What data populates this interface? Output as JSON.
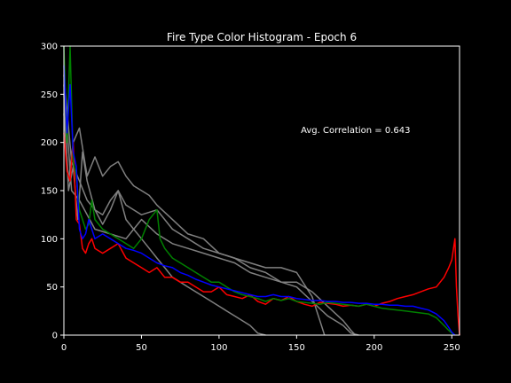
{
  "chart_data": {
    "type": "line",
    "title": "Fire Type Color Histogram - Epoch 6",
    "xlabel": "",
    "ylabel": "",
    "xlim": [
      0,
      255
    ],
    "ylim": [
      0,
      300
    ],
    "x_ticks": [
      0,
      50,
      100,
      150,
      200,
      250
    ],
    "y_ticks": [
      0,
      50,
      100,
      150,
      200,
      250,
      300
    ],
    "grid": false,
    "background": "#000000",
    "annotation": {
      "text": "Avg. Correlation = 0.643",
      "x": 188,
      "y": 210
    },
    "series": [
      {
        "role": "reference",
        "color": "#808080",
        "points": [
          [
            0,
            250
          ],
          [
            3,
            150
          ],
          [
            6,
            175
          ],
          [
            9,
            120
          ],
          [
            12,
            190
          ],
          [
            15,
            160
          ],
          [
            20,
            130
          ],
          [
            25,
            115
          ],
          [
            30,
            130
          ],
          [
            35,
            150
          ],
          [
            40,
            120
          ],
          [
            45,
            110
          ],
          [
            50,
            100
          ],
          [
            55,
            90
          ],
          [
            60,
            80
          ],
          [
            65,
            70
          ],
          [
            70,
            60
          ],
          [
            75,
            55
          ],
          [
            80,
            50
          ],
          [
            90,
            40
          ],
          [
            100,
            30
          ],
          [
            110,
            20
          ],
          [
            120,
            10
          ],
          [
            125,
            2
          ],
          [
            130,
            0
          ]
        ]
      },
      {
        "role": "reference",
        "color": "#808080",
        "points": [
          [
            0,
            230
          ],
          [
            3,
            160
          ],
          [
            6,
            200
          ],
          [
            10,
            215
          ],
          [
            15,
            165
          ],
          [
            20,
            185
          ],
          [
            25,
            165
          ],
          [
            30,
            175
          ],
          [
            35,
            180
          ],
          [
            40,
            165
          ],
          [
            45,
            155
          ],
          [
            50,
            150
          ],
          [
            55,
            145
          ],
          [
            60,
            135
          ],
          [
            70,
            120
          ],
          [
            80,
            105
          ],
          [
            90,
            100
          ],
          [
            100,
            85
          ],
          [
            110,
            80
          ],
          [
            120,
            70
          ],
          [
            130,
            65
          ],
          [
            140,
            55
          ],
          [
            150,
            50
          ],
          [
            160,
            35
          ],
          [
            170,
            20
          ],
          [
            180,
            10
          ],
          [
            185,
            2
          ],
          [
            190,
            0
          ]
        ]
      },
      {
        "role": "reference",
        "color": "#808080",
        "points": [
          [
            0,
            270
          ],
          [
            5,
            180
          ],
          [
            10,
            160
          ],
          [
            15,
            140
          ],
          [
            20,
            130
          ],
          [
            25,
            125
          ],
          [
            30,
            140
          ],
          [
            35,
            150
          ],
          [
            40,
            135
          ],
          [
            45,
            130
          ],
          [
            50,
            125
          ],
          [
            60,
            130
          ],
          [
            70,
            110
          ],
          [
            80,
            100
          ],
          [
            90,
            90
          ],
          [
            100,
            85
          ],
          [
            110,
            80
          ],
          [
            120,
            75
          ],
          [
            130,
            70
          ],
          [
            140,
            70
          ],
          [
            150,
            65
          ],
          [
            160,
            40
          ],
          [
            165,
            15
          ],
          [
            168,
            0
          ]
        ]
      },
      {
        "role": "reference",
        "color": "#808080",
        "points": [
          [
            0,
            260
          ],
          [
            5,
            150
          ],
          [
            10,
            140
          ],
          [
            15,
            125
          ],
          [
            20,
            110
          ],
          [
            30,
            105
          ],
          [
            40,
            100
          ],
          [
            50,
            120
          ],
          [
            60,
            105
          ],
          [
            70,
            95
          ],
          [
            80,
            90
          ],
          [
            90,
            85
          ],
          [
            100,
            80
          ],
          [
            110,
            75
          ],
          [
            120,
            65
          ],
          [
            130,
            60
          ],
          [
            140,
            55
          ],
          [
            150,
            55
          ],
          [
            160,
            45
          ],
          [
            170,
            30
          ],
          [
            180,
            15
          ],
          [
            185,
            5
          ],
          [
            188,
            0
          ]
        ]
      },
      {
        "role": "red",
        "color": "#ff0000",
        "points": [
          [
            0,
            210
          ],
          [
            2,
            170
          ],
          [
            4,
            160
          ],
          [
            6,
            200
          ],
          [
            8,
            120
          ],
          [
            10,
            115
          ],
          [
            12,
            90
          ],
          [
            14,
            85
          ],
          [
            16,
            95
          ],
          [
            18,
            100
          ],
          [
            20,
            90
          ],
          [
            25,
            85
          ],
          [
            30,
            90
          ],
          [
            35,
            95
          ],
          [
            40,
            80
          ],
          [
            45,
            75
          ],
          [
            50,
            70
          ],
          [
            55,
            65
          ],
          [
            60,
            70
          ],
          [
            65,
            60
          ],
          [
            70,
            60
          ],
          [
            75,
            55
          ],
          [
            80,
            55
          ],
          [
            85,
            50
          ],
          [
            90,
            45
          ],
          [
            95,
            45
          ],
          [
            100,
            50
          ],
          [
            105,
            42
          ],
          [
            110,
            40
          ],
          [
            115,
            38
          ],
          [
            120,
            42
          ],
          [
            125,
            35
          ],
          [
            130,
            32
          ],
          [
            135,
            38
          ],
          [
            140,
            36
          ],
          [
            145,
            40
          ],
          [
            150,
            35
          ],
          [
            155,
            32
          ],
          [
            160,
            30
          ],
          [
            165,
            34
          ],
          [
            170,
            33
          ],
          [
            175,
            32
          ],
          [
            180,
            30
          ],
          [
            185,
            31
          ],
          [
            190,
            30
          ],
          [
            195,
            32
          ],
          [
            200,
            30
          ],
          [
            205,
            33
          ],
          [
            210,
            35
          ],
          [
            215,
            38
          ],
          [
            220,
            40
          ],
          [
            225,
            42
          ],
          [
            230,
            45
          ],
          [
            235,
            48
          ],
          [
            240,
            50
          ],
          [
            245,
            60
          ],
          [
            248,
            70
          ],
          [
            250,
            78
          ],
          [
            252,
            100
          ],
          [
            253,
            50
          ],
          [
            254,
            20
          ],
          [
            255,
            0
          ]
        ]
      },
      {
        "role": "green",
        "color": "#008000",
        "points": [
          [
            0,
            300
          ],
          [
            2,
            200
          ],
          [
            4,
            300
          ],
          [
            6,
            180
          ],
          [
            8,
            165
          ],
          [
            10,
            130
          ],
          [
            12,
            120
          ],
          [
            14,
            110
          ],
          [
            16,
            115
          ],
          [
            18,
            140
          ],
          [
            20,
            120
          ],
          [
            25,
            110
          ],
          [
            30,
            105
          ],
          [
            35,
            100
          ],
          [
            40,
            95
          ],
          [
            45,
            90
          ],
          [
            50,
            100
          ],
          [
            55,
            120
          ],
          [
            60,
            130
          ],
          [
            62,
            100
          ],
          [
            65,
            90
          ],
          [
            70,
            80
          ],
          [
            75,
            75
          ],
          [
            80,
            70
          ],
          [
            85,
            65
          ],
          [
            90,
            60
          ],
          [
            95,
            55
          ],
          [
            100,
            55
          ],
          [
            105,
            50
          ],
          [
            110,
            45
          ],
          [
            115,
            42
          ],
          [
            120,
            40
          ],
          [
            125,
            38
          ],
          [
            130,
            35
          ],
          [
            135,
            38
          ],
          [
            140,
            36
          ],
          [
            145,
            38
          ],
          [
            150,
            35
          ],
          [
            155,
            34
          ],
          [
            160,
            33
          ],
          [
            165,
            32
          ],
          [
            170,
            34
          ],
          [
            175,
            33
          ],
          [
            180,
            32
          ],
          [
            185,
            31
          ],
          [
            190,
            30
          ],
          [
            195,
            32
          ],
          [
            200,
            30
          ],
          [
            205,
            28
          ],
          [
            210,
            27
          ],
          [
            215,
            26
          ],
          [
            220,
            25
          ],
          [
            225,
            24
          ],
          [
            230,
            23
          ],
          [
            235,
            22
          ],
          [
            240,
            18
          ],
          [
            245,
            10
          ],
          [
            248,
            5
          ],
          [
            250,
            2
          ],
          [
            252,
            0
          ]
        ]
      },
      {
        "role": "blue",
        "color": "#0000ff",
        "points": [
          [
            0,
            280
          ],
          [
            2,
            210
          ],
          [
            4,
            260
          ],
          [
            6,
            190
          ],
          [
            8,
            175
          ],
          [
            10,
            110
          ],
          [
            12,
            100
          ],
          [
            14,
            105
          ],
          [
            16,
            120
          ],
          [
            18,
            110
          ],
          [
            20,
            100
          ],
          [
            25,
            105
          ],
          [
            30,
            100
          ],
          [
            35,
            95
          ],
          [
            40,
            90
          ],
          [
            45,
            88
          ],
          [
            50,
            85
          ],
          [
            55,
            80
          ],
          [
            60,
            75
          ],
          [
            65,
            72
          ],
          [
            70,
            70
          ],
          [
            75,
            65
          ],
          [
            80,
            62
          ],
          [
            85,
            58
          ],
          [
            90,
            55
          ],
          [
            95,
            52
          ],
          [
            100,
            50
          ],
          [
            105,
            48
          ],
          [
            110,
            46
          ],
          [
            115,
            44
          ],
          [
            120,
            42
          ],
          [
            125,
            40
          ],
          [
            130,
            40
          ],
          [
            135,
            42
          ],
          [
            140,
            40
          ],
          [
            145,
            40
          ],
          [
            150,
            38
          ],
          [
            155,
            37
          ],
          [
            160,
            36
          ],
          [
            165,
            36
          ],
          [
            170,
            35
          ],
          [
            175,
            35
          ],
          [
            180,
            34
          ],
          [
            185,
            34
          ],
          [
            190,
            33
          ],
          [
            195,
            33
          ],
          [
            200,
            32
          ],
          [
            205,
            32
          ],
          [
            210,
            31
          ],
          [
            215,
            31
          ],
          [
            220,
            30
          ],
          [
            225,
            30
          ],
          [
            230,
            28
          ],
          [
            235,
            26
          ],
          [
            240,
            22
          ],
          [
            245,
            15
          ],
          [
            248,
            8
          ],
          [
            250,
            3
          ],
          [
            252,
            0
          ]
        ]
      }
    ]
  }
}
